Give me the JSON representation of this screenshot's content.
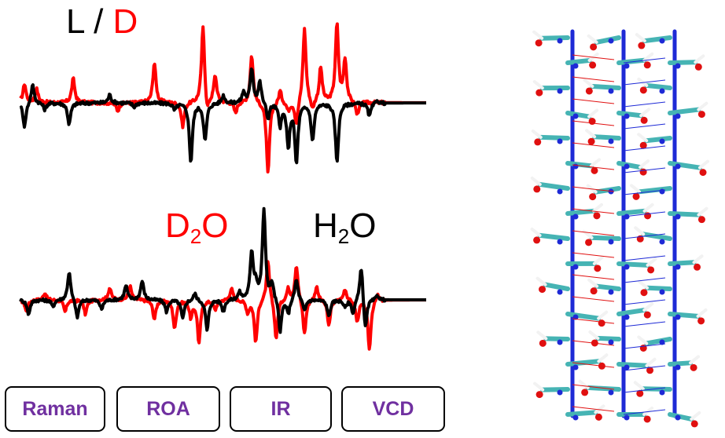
{
  "legend_top": {
    "l": "L",
    "sep": "/",
    "d": "D"
  },
  "legend_bottom": {
    "d2o_base": "D",
    "d2o_sub": "2",
    "d2o_end": "O",
    "h2o_base": "H",
    "h2o_sub": "2",
    "h2o_end": "O"
  },
  "tabs": [
    "Raman",
    "ROA",
    "IR",
    "VCD"
  ],
  "colors": {
    "red": "#ff0000",
    "black": "#000000",
    "tab_text": "#7030a0",
    "carbon": "#46b4b4",
    "nitrogen": "#1e2ad6",
    "oxygen": "#e01010",
    "hydrogen": "#f2f2f2"
  },
  "chart_data": [
    {
      "type": "line",
      "title": "",
      "xlabel": "",
      "ylabel": "",
      "series": [
        {
          "name": "L",
          "color": "#000000",
          "peaks": [
            [
              0.01,
              -0.9
            ],
            [
              0.03,
              0.7
            ],
            [
              0.06,
              -0.25
            ],
            [
              0.12,
              -0.8
            ],
            [
              0.22,
              0.3
            ],
            [
              0.28,
              -0.15
            ],
            [
              0.38,
              -0.25
            ],
            [
              0.42,
              -2.2
            ],
            [
              0.455,
              -1.4
            ],
            [
              0.5,
              0.3
            ],
            [
              0.55,
              0.4
            ],
            [
              0.57,
              1.3
            ],
            [
              0.59,
              0.8
            ],
            [
              0.61,
              -0.6
            ],
            [
              0.64,
              -0.8
            ],
            [
              0.66,
              -1.6
            ],
            [
              0.68,
              -2.2
            ],
            [
              0.72,
              -1.4
            ],
            [
              0.78,
              -2.2
            ],
            [
              0.86,
              -0.5
            ],
            [
              0.88,
              0.1
            ]
          ]
        },
        {
          "name": "D",
          "color": "#ff0000",
          "peaks": [
            [
              0.01,
              0.7
            ],
            [
              0.04,
              0.5
            ],
            [
              0.13,
              0.9
            ],
            [
              0.24,
              -0.3
            ],
            [
              0.33,
              1.5
            ],
            [
              0.4,
              -0.9
            ],
            [
              0.45,
              2.9
            ],
            [
              0.46,
              -0.6
            ],
            [
              0.48,
              1.0
            ],
            [
              0.53,
              -0.4
            ],
            [
              0.57,
              1.8
            ],
            [
              0.61,
              -2.7
            ],
            [
              0.64,
              0.5
            ],
            [
              0.66,
              -0.3
            ],
            [
              0.68,
              -0.9
            ],
            [
              0.7,
              2.8
            ],
            [
              0.72,
              -0.4
            ],
            [
              0.74,
              1.3
            ],
            [
              0.78,
              2.9
            ],
            [
              0.8,
              1.6
            ],
            [
              0.83,
              -0.5
            ]
          ]
        }
      ]
    },
    {
      "type": "line",
      "title": "",
      "xlabel": "",
      "ylabel": "",
      "series": [
        {
          "name": "H₂O",
          "color": "#000000",
          "peaks": [
            [
              0.02,
              -0.6
            ],
            [
              0.08,
              -0.3
            ],
            [
              0.12,
              1.2
            ],
            [
              0.14,
              -0.8
            ],
            [
              0.2,
              -0.4
            ],
            [
              0.26,
              0.6
            ],
            [
              0.3,
              0.8
            ],
            [
              0.36,
              -0.5
            ],
            [
              0.4,
              -0.8
            ],
            [
              0.43,
              0.3
            ],
            [
              0.46,
              -1.3
            ],
            [
              0.5,
              -0.5
            ],
            [
              0.54,
              0.3
            ],
            [
              0.57,
              2.0
            ],
            [
              0.58,
              0.6
            ],
            [
              0.6,
              3.8
            ],
            [
              0.62,
              0.7
            ],
            [
              0.64,
              -1.4
            ],
            [
              0.66,
              -0.6
            ],
            [
              0.68,
              0.9
            ],
            [
              0.7,
              -0.5
            ],
            [
              0.76,
              -0.7
            ],
            [
              0.8,
              -0.3
            ],
            [
              0.82,
              -0.6
            ],
            [
              0.84,
              1.6
            ],
            [
              0.85,
              -1.4
            ],
            [
              0.88,
              0.2
            ]
          ]
        },
        {
          "name": "D₂O",
          "color": "#ff0000",
          "peaks": [
            [
              0.015,
              -0.5
            ],
            [
              0.06,
              0.3
            ],
            [
              0.11,
              -0.5
            ],
            [
              0.16,
              -0.6
            ],
            [
              0.22,
              0.5
            ],
            [
              0.27,
              0.6
            ],
            [
              0.33,
              -0.8
            ],
            [
              0.38,
              -1.2
            ],
            [
              0.42,
              -0.7
            ],
            [
              0.44,
              -1.8
            ],
            [
              0.48,
              -0.4
            ],
            [
              0.52,
              0.5
            ],
            [
              0.56,
              -0.5
            ],
            [
              0.58,
              -1.8
            ],
            [
              0.61,
              1.7
            ],
            [
              0.63,
              -1.7
            ],
            [
              0.66,
              0.5
            ],
            [
              0.68,
              1.5
            ],
            [
              0.7,
              -1.5
            ],
            [
              0.73,
              0.6
            ],
            [
              0.76,
              -1.1
            ],
            [
              0.8,
              0.5
            ],
            [
              0.83,
              -0.9
            ],
            [
              0.86,
              -2.1
            ],
            [
              0.88,
              0.3
            ]
          ]
        }
      ]
    }
  ]
}
